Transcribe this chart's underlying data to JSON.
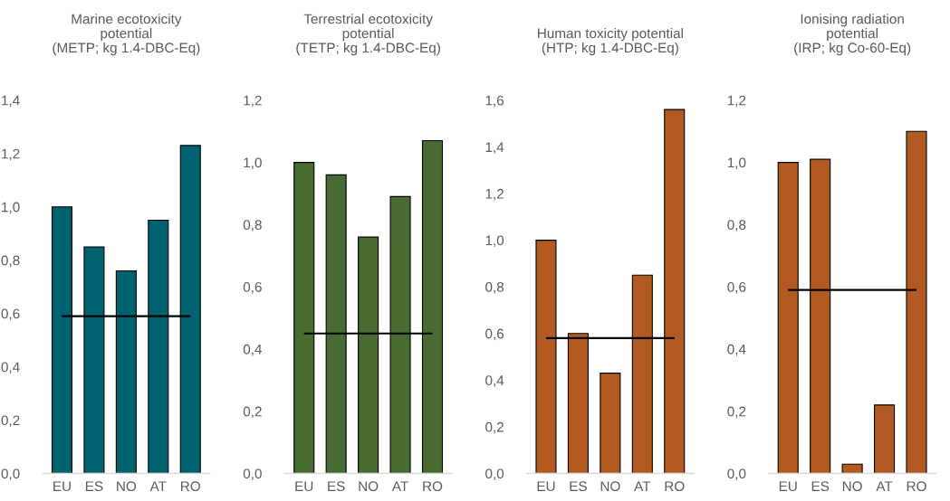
{
  "chart_data": [
    {
      "type": "bar",
      "title": "Marine ecotoxicity\npotential\n(METP; kg 1.4-DBC-Eq)",
      "categories": [
        "EU",
        "ES",
        "NO",
        "AT",
        "RO"
      ],
      "values": [
        1.0,
        0.85,
        0.76,
        0.95,
        1.23
      ],
      "color": "#006170",
      "ylim": [
        0,
        1.4
      ],
      "yticks": [
        {
          "value": 0,
          "label": "0,0"
        },
        {
          "value": 0.2,
          "label": "0,2"
        },
        {
          "value": 0.4,
          "label": "0,4"
        },
        {
          "value": 0.6,
          "label": "0,6"
        },
        {
          "value": 0.8,
          "label": "0,8"
        },
        {
          "value": 1.0,
          "label": "1,0"
        },
        {
          "value": 1.2,
          "label": "1,2"
        },
        {
          "value": 1.4,
          "label": "1,4"
        }
      ],
      "ref_lines": [
        {
          "axis": "y",
          "value": 0.59,
          "color": "#000000"
        }
      ],
      "grid": false,
      "legend": false
    },
    {
      "type": "bar",
      "title": "Terrestrial ecotoxicity\npotential\n(TETP; kg 1.4-DBC-Eq)",
      "categories": [
        "EU",
        "ES",
        "NO",
        "AT",
        "RO"
      ],
      "values": [
        1.0,
        0.96,
        0.76,
        0.89,
        1.07
      ],
      "color": "#486b32",
      "ylim": [
        0,
        1.2
      ],
      "yticks": [
        {
          "value": 0,
          "label": "0,0"
        },
        {
          "value": 0.2,
          "label": "0,2"
        },
        {
          "value": 0.4,
          "label": "0,4"
        },
        {
          "value": 0.6,
          "label": "0,6"
        },
        {
          "value": 0.8,
          "label": "0,8"
        },
        {
          "value": 1.0,
          "label": "1,0"
        },
        {
          "value": 1.2,
          "label": "1,2"
        }
      ],
      "ref_lines": [
        {
          "axis": "y",
          "value": 0.45,
          "color": "#000000"
        }
      ],
      "grid": false,
      "legend": false
    },
    {
      "type": "bar",
      "title": "Human toxicity potential\n(HTP; kg 1.4-DBC-Eq)",
      "categories": [
        "EU",
        "ES",
        "NO",
        "AT",
        "RO"
      ],
      "values": [
        1.0,
        0.6,
        0.43,
        0.85,
        1.56
      ],
      "color": "#b35a22",
      "ylim": [
        0,
        1.6
      ],
      "yticks": [
        {
          "value": 0,
          "label": "0,0"
        },
        {
          "value": 0.2,
          "label": "0,2"
        },
        {
          "value": 0.4,
          "label": "0,4"
        },
        {
          "value": 0.6,
          "label": "0,6"
        },
        {
          "value": 0.8,
          "label": "0,8"
        },
        {
          "value": 1.0,
          "label": "1,0"
        },
        {
          "value": 1.2,
          "label": "1,2"
        },
        {
          "value": 1.4,
          "label": "1,4"
        },
        {
          "value": 1.6,
          "label": "1,6"
        }
      ],
      "ref_lines": [
        {
          "axis": "y",
          "value": 0.58,
          "color": "#000000"
        }
      ],
      "grid": false,
      "legend": false
    },
    {
      "type": "bar",
      "title": "Ionising radiation\npotential\n(IRP; kg Co-60-Eq)",
      "categories": [
        "EU",
        "ES",
        "NO",
        "AT",
        "RO"
      ],
      "values": [
        1.0,
        1.01,
        0.03,
        0.22,
        1.1
      ],
      "color": "#b35a22",
      "ylim": [
        0,
        1.2
      ],
      "yticks": [
        {
          "value": 0,
          "label": "0,0"
        },
        {
          "value": 0.2,
          "label": "0,2"
        },
        {
          "value": 0.4,
          "label": "0,4"
        },
        {
          "value": 0.6,
          "label": "0,6"
        },
        {
          "value": 0.8,
          "label": "0,8"
        },
        {
          "value": 1.0,
          "label": "1,0"
        },
        {
          "value": 1.2,
          "label": "1,2"
        }
      ],
      "ref_lines": [
        {
          "axis": "y",
          "value": 0.59,
          "color": "#000000"
        }
      ],
      "grid": false,
      "legend": false
    }
  ]
}
